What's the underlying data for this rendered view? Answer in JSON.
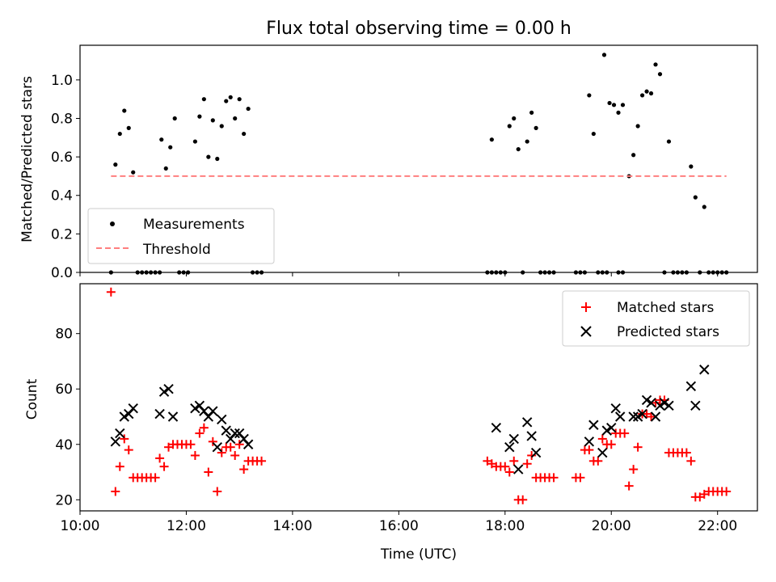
{
  "chart_data": [
    {
      "type": "scatter",
      "title": "Flux total observing time = 0.00 h",
      "xlabel": "",
      "ylabel": "Matched/Predicted stars",
      "xlim": [
        "10:00",
        "22:45"
      ],
      "ylim": [
        0,
        1.18
      ],
      "yticks": [
        0.0,
        0.2,
        0.4,
        0.6,
        0.8,
        1.0
      ],
      "ytick_labels": [
        "0.0",
        "0.2",
        "0.4",
        "0.6",
        "0.8",
        "1.0"
      ],
      "legend_position": "lower-left",
      "series": [
        {
          "name": "Measurements",
          "marker": "dot",
          "color": "#000000",
          "points": [
            [
              "10:35",
              0.0
            ],
            [
              "10:40",
              0.56
            ],
            [
              "10:45",
              0.72
            ],
            [
              "10:50",
              0.84
            ],
            [
              "10:55",
              0.75
            ],
            [
              "11:00",
              0.52
            ],
            [
              "11:05",
              0.0
            ],
            [
              "11:10",
              0.0
            ],
            [
              "11:15",
              0.0
            ],
            [
              "11:20",
              0.0
            ],
            [
              "11:25",
              0.0
            ],
            [
              "11:30",
              0.0
            ],
            [
              "11:32",
              0.69
            ],
            [
              "11:37",
              0.54
            ],
            [
              "11:42",
              0.65
            ],
            [
              "11:47",
              0.8
            ],
            [
              "11:52",
              0.0
            ],
            [
              "11:57",
              0.0
            ],
            [
              "12:02",
              0.0
            ],
            [
              "12:10",
              0.68
            ],
            [
              "12:15",
              0.81
            ],
            [
              "12:20",
              0.9
            ],
            [
              "12:25",
              0.6
            ],
            [
              "12:30",
              0.79
            ],
            [
              "12:35",
              0.59
            ],
            [
              "12:40",
              0.76
            ],
            [
              "12:45",
              0.89
            ],
            [
              "12:50",
              0.91
            ],
            [
              "12:55",
              0.8
            ],
            [
              "13:00",
              0.9
            ],
            [
              "13:05",
              0.72
            ],
            [
              "13:10",
              0.85
            ],
            [
              "13:15",
              0.0
            ],
            [
              "13:20",
              0.0
            ],
            [
              "13:25",
              0.0
            ],
            [
              "17:40",
              0.0
            ],
            [
              "17:45",
              0.0
            ],
            [
              "17:50",
              0.0
            ],
            [
              "17:55",
              0.0
            ],
            [
              "18:00",
              0.0
            ],
            [
              "17:45",
              0.69
            ],
            [
              "18:05",
              0.76
            ],
            [
              "18:10",
              0.8
            ],
            [
              "18:15",
              0.64
            ],
            [
              "18:20",
              0.0
            ],
            [
              "18:25",
              0.68
            ],
            [
              "18:30",
              0.83
            ],
            [
              "18:35",
              0.75
            ],
            [
              "18:40",
              0.0
            ],
            [
              "18:45",
              0.0
            ],
            [
              "18:50",
              0.0
            ],
            [
              "18:55",
              0.0
            ],
            [
              "19:20",
              0.0
            ],
            [
              "19:25",
              0.0
            ],
            [
              "19:30",
              0.0
            ],
            [
              "19:35",
              0.92
            ],
            [
              "19:40",
              0.72
            ],
            [
              "19:45",
              0.0
            ],
            [
              "19:50",
              0.0
            ],
            [
              "19:55",
              0.0
            ],
            [
              "19:52",
              1.13
            ],
            [
              "19:58",
              0.88
            ],
            [
              "20:03",
              0.87
            ],
            [
              "20:08",
              0.83
            ],
            [
              "20:13",
              0.87
            ],
            [
              "20:08",
              0.0
            ],
            [
              "20:13",
              0.0
            ],
            [
              "20:20",
              0.5
            ],
            [
              "20:25",
              0.61
            ],
            [
              "20:30",
              0.76
            ],
            [
              "20:35",
              0.92
            ],
            [
              "20:40",
              0.94
            ],
            [
              "20:45",
              0.93
            ],
            [
              "20:50",
              1.08
            ],
            [
              "20:55",
              1.03
            ],
            [
              "21:00",
              0.0
            ],
            [
              "21:05",
              0.68
            ],
            [
              "21:10",
              0.0
            ],
            [
              "21:15",
              0.0
            ],
            [
              "21:20",
              0.0
            ],
            [
              "21:25",
              0.0
            ],
            [
              "21:30",
              0.55
            ],
            [
              "21:35",
              0.39
            ],
            [
              "21:40",
              0.0
            ],
            [
              "21:45",
              0.34
            ],
            [
              "21:50",
              0.0
            ],
            [
              "21:55",
              0.0
            ],
            [
              "22:00",
              0.0
            ],
            [
              "22:05",
              0.0
            ],
            [
              "22:10",
              0.0
            ]
          ]
        },
        {
          "name": "Threshold",
          "style": "dashed",
          "color": "#ff7f7f",
          "points": [
            [
              "10:35",
              0.5
            ],
            [
              "22:10",
              0.5
            ]
          ]
        }
      ]
    },
    {
      "type": "scatter",
      "title": "",
      "xlabel": "Time (UTC)",
      "ylabel": "Count",
      "xlim": [
        "10:00",
        "22:45"
      ],
      "ylim": [
        16,
        98
      ],
      "yticks": [
        20,
        40,
        60,
        80
      ],
      "ytick_labels": [
        "20",
        "40",
        "60",
        "80"
      ],
      "xticks": [
        "10:00",
        "12:00",
        "14:00",
        "16:00",
        "18:00",
        "20:00",
        "22:00"
      ],
      "xtick_labels": [
        "10:00",
        "12:00",
        "14:00",
        "16:00",
        "18:00",
        "20:00",
        "22:00"
      ],
      "legend_position": "upper-right",
      "series": [
        {
          "name": "Matched stars",
          "marker": "plus",
          "color": "#ff0000",
          "points": [
            [
              "10:35",
              95
            ],
            [
              "10:40",
              23
            ],
            [
              "10:45",
              32
            ],
            [
              "10:50",
              42
            ],
            [
              "10:55",
              38
            ],
            [
              "11:00",
              28
            ],
            [
              "11:05",
              28
            ],
            [
              "11:10",
              28
            ],
            [
              "11:15",
              28
            ],
            [
              "11:20",
              28
            ],
            [
              "11:25",
              28
            ],
            [
              "11:30",
              35
            ],
            [
              "11:35",
              32
            ],
            [
              "11:40",
              39
            ],
            [
              "11:45",
              40
            ],
            [
              "11:50",
              40
            ],
            [
              "11:55",
              40
            ],
            [
              "12:00",
              40
            ],
            [
              "12:05",
              40
            ],
            [
              "12:10",
              36
            ],
            [
              "12:15",
              44
            ],
            [
              "12:20",
              46
            ],
            [
              "12:25",
              30
            ],
            [
              "12:30",
              41
            ],
            [
              "12:35",
              23
            ],
            [
              "12:40",
              37
            ],
            [
              "12:45",
              39
            ],
            [
              "12:50",
              39
            ],
            [
              "12:55",
              36
            ],
            [
              "13:00",
              40
            ],
            [
              "13:05",
              31
            ],
            [
              "13:10",
              34
            ],
            [
              "13:15",
              34
            ],
            [
              "13:20",
              34
            ],
            [
              "13:25",
              34
            ],
            [
              "17:40",
              34
            ],
            [
              "17:45",
              33
            ],
            [
              "17:50",
              32
            ],
            [
              "17:55",
              32
            ],
            [
              "18:00",
              32
            ],
            [
              "18:05",
              30
            ],
            [
              "18:10",
              34
            ],
            [
              "18:15",
              20
            ],
            [
              "18:20",
              20
            ],
            [
              "18:25",
              33
            ],
            [
              "18:30",
              36
            ],
            [
              "18:35",
              28
            ],
            [
              "18:40",
              28
            ],
            [
              "18:45",
              28
            ],
            [
              "18:50",
              28
            ],
            [
              "18:55",
              28
            ],
            [
              "19:20",
              28
            ],
            [
              "19:25",
              28
            ],
            [
              "19:30",
              38
            ],
            [
              "19:35",
              38
            ],
            [
              "19:40",
              34
            ],
            [
              "19:45",
              34
            ],
            [
              "19:50",
              42
            ],
            [
              "19:55",
              40
            ],
            [
              "20:00",
              40
            ],
            [
              "20:05",
              44
            ],
            [
              "20:10",
              44
            ],
            [
              "20:15",
              44
            ],
            [
              "20:20",
              25
            ],
            [
              "20:25",
              31
            ],
            [
              "20:30",
              39
            ],
            [
              "20:35",
              51
            ],
            [
              "20:40",
              51
            ],
            [
              "20:45",
              50
            ],
            [
              "20:50",
              55
            ],
            [
              "20:55",
              56
            ],
            [
              "21:00",
              56
            ],
            [
              "21:05",
              37
            ],
            [
              "21:10",
              37
            ],
            [
              "21:15",
              37
            ],
            [
              "21:20",
              37
            ],
            [
              "21:25",
              37
            ],
            [
              "21:30",
              34
            ],
            [
              "21:35",
              21
            ],
            [
              "21:40",
              21
            ],
            [
              "21:45",
              22
            ],
            [
              "21:50",
              23
            ],
            [
              "21:55",
              23
            ],
            [
              "22:00",
              23
            ],
            [
              "22:05",
              23
            ],
            [
              "22:10",
              23
            ]
          ]
        },
        {
          "name": "Predicted stars",
          "marker": "x",
          "color": "#000000",
          "points": [
            [
              "10:40",
              41
            ],
            [
              "10:45",
              44
            ],
            [
              "10:50",
              50
            ],
            [
              "10:55",
              51
            ],
            [
              "11:00",
              53
            ],
            [
              "11:30",
              51
            ],
            [
              "11:35",
              59
            ],
            [
              "11:40",
              60
            ],
            [
              "11:45",
              50
            ],
            [
              "12:10",
              53
            ],
            [
              "12:15",
              54
            ],
            [
              "12:20",
              52
            ],
            [
              "12:25",
              50
            ],
            [
              "12:30",
              52
            ],
            [
              "12:35",
              39
            ],
            [
              "12:40",
              49
            ],
            [
              "12:45",
              45
            ],
            [
              "12:50",
              42
            ],
            [
              "12:55",
              44
            ],
            [
              "13:00",
              44
            ],
            [
              "13:05",
              42
            ],
            [
              "13:10",
              40
            ],
            [
              "17:50",
              46
            ],
            [
              "18:05",
              39
            ],
            [
              "18:10",
              42
            ],
            [
              "18:15",
              31
            ],
            [
              "18:25",
              48
            ],
            [
              "18:30",
              43
            ],
            [
              "18:35",
              37
            ],
            [
              "19:35",
              41
            ],
            [
              "19:40",
              47
            ],
            [
              "19:50",
              37
            ],
            [
              "19:55",
              45
            ],
            [
              "20:00",
              46
            ],
            [
              "20:05",
              53
            ],
            [
              "20:10",
              50
            ],
            [
              "20:25",
              50
            ],
            [
              "20:30",
              50
            ],
            [
              "20:35",
              51
            ],
            [
              "20:40",
              56
            ],
            [
              "20:45",
              55
            ],
            [
              "20:50",
              50
            ],
            [
              "20:55",
              54
            ],
            [
              "21:00",
              55
            ],
            [
              "21:05",
              54
            ],
            [
              "21:30",
              61
            ],
            [
              "21:35",
              54
            ],
            [
              "21:45",
              67
            ]
          ]
        }
      ]
    }
  ]
}
